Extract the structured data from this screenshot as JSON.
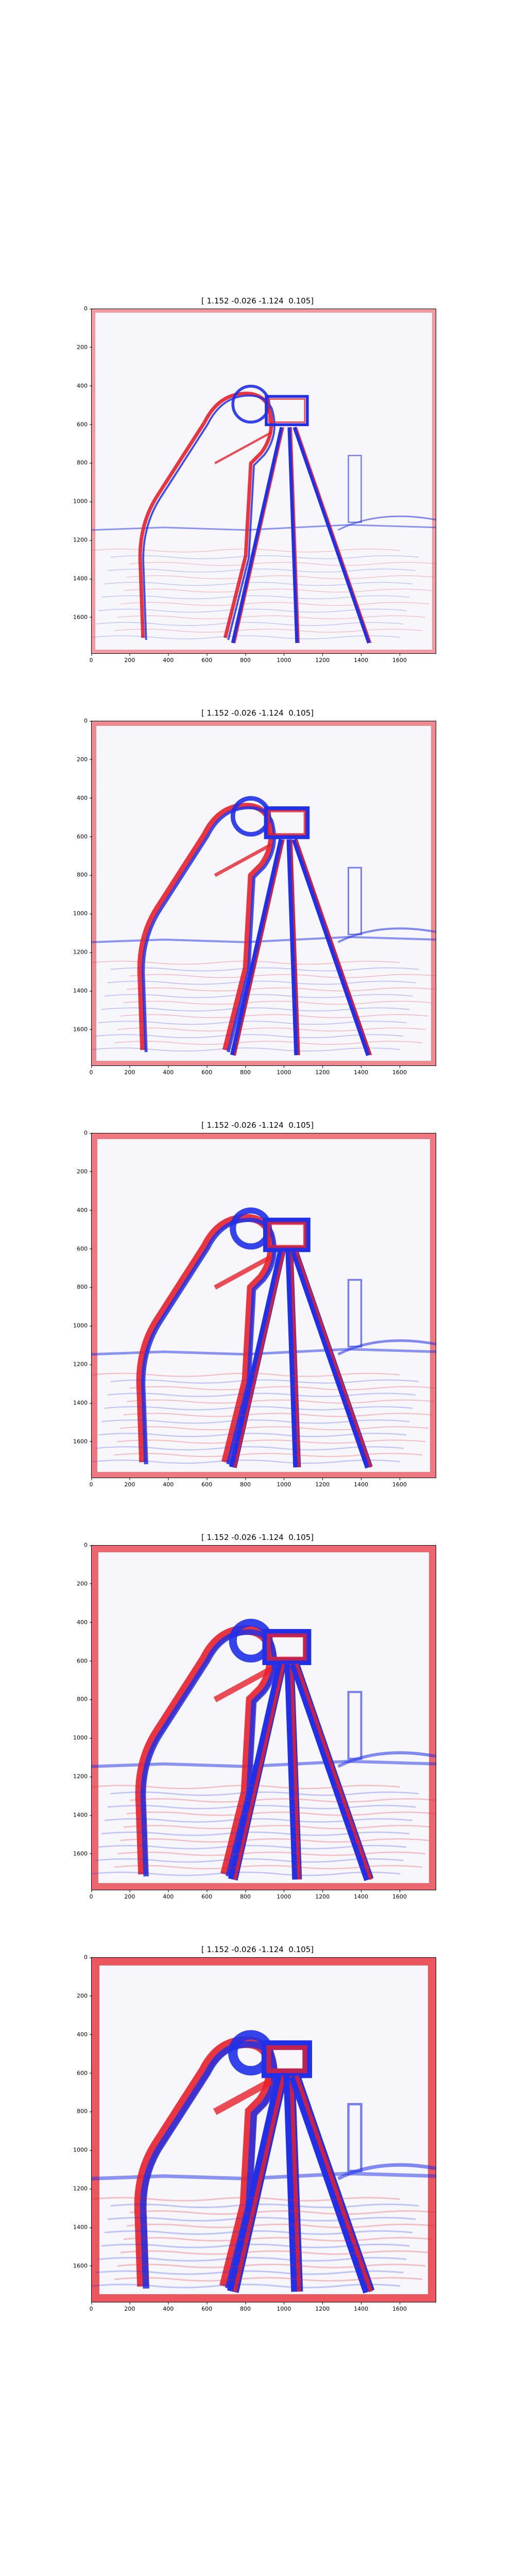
{
  "panels": [
    {
      "title": "[ 1.152 -0.026 -1.124  0.105]",
      "level": 1
    },
    {
      "title": "[ 1.152 -0.026 -1.124  0.105]",
      "level": 2
    },
    {
      "title": "[ 1.152 -0.026 -1.124  0.105]",
      "level": 3
    },
    {
      "title": "[ 1.152 -0.026 -1.124  0.105]",
      "level": 4
    },
    {
      "title": "[ 1.152 -0.026 -1.124  0.105]",
      "level": 5
    }
  ],
  "x_ticks": [
    "0",
    "200",
    "400",
    "600",
    "800",
    "1000",
    "1200",
    "1400",
    "1600"
  ],
  "y_ticks": [
    "0",
    "200",
    "400",
    "600",
    "800",
    "1000",
    "1200",
    "1400",
    "1600"
  ],
  "colors": {
    "positive": "#e8202a",
    "negative": "#2030e8",
    "neutral": "#f6f6fb"
  }
}
